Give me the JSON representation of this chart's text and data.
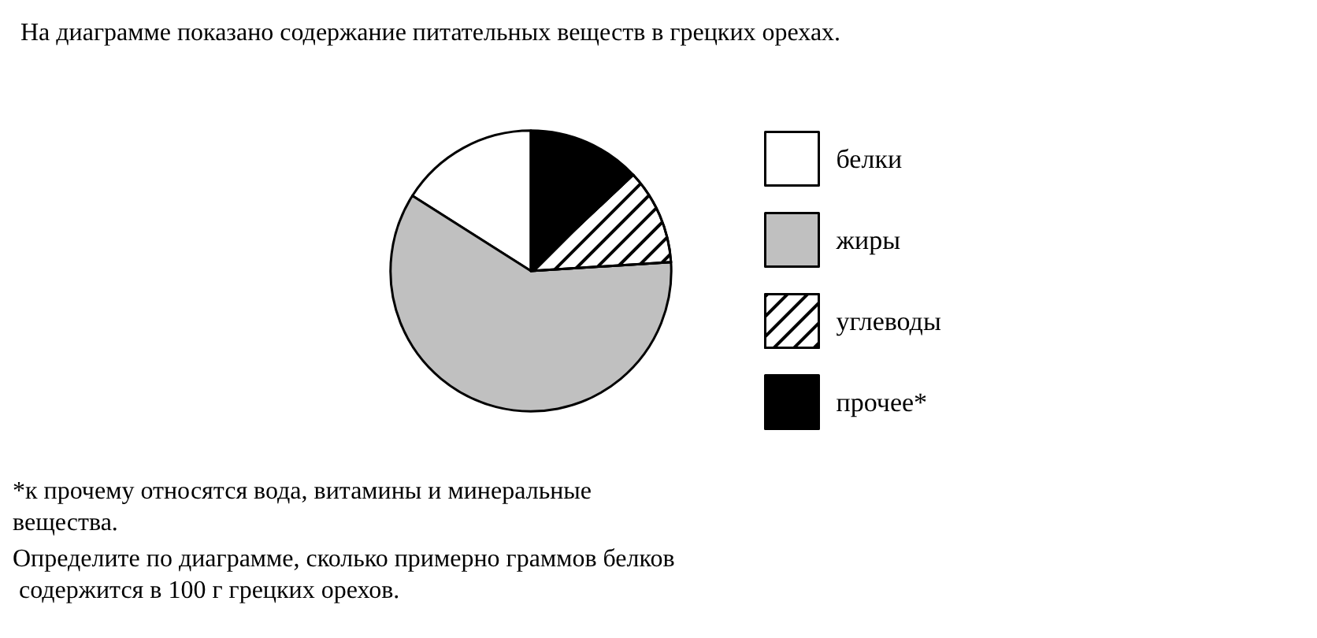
{
  "chart_data": {
    "type": "pie",
    "title": "На диаграмме показано содержание питательных веществ в грецких орехах.",
    "categories": [
      "белки",
      "жиры",
      "углеводы",
      "прочее*"
    ],
    "values": [
      16,
      60,
      11,
      13
    ],
    "colors": [
      "#ffffff",
      "#c0c0c0",
      "#ffffff",
      "#000000"
    ],
    "legend": "right",
    "annotations": [
      "*к прочему относятся вода, витамины и минеральные вещества.",
      "Определите по диаграмме, сколько примерно граммов белков содержится в 100 г грецких орехов."
    ]
  }
}
